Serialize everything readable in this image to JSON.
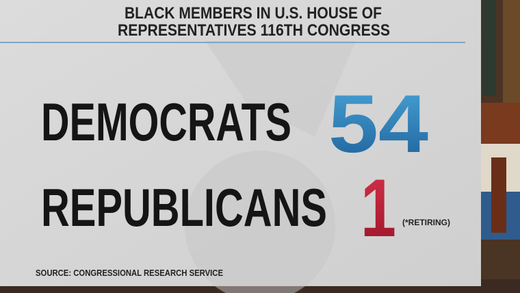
{
  "title": [
    "BLACK MEMBERS IN U.S. HOUSE OF",
    "REPRESENTATIVES 116TH CONGRESS"
  ],
  "rows": [
    {
      "label": "DEMOCRATS",
      "value": 54
    },
    {
      "label": "REPUBLICANS",
      "value": 1,
      "note": "(*RETIRING)"
    }
  ],
  "source": "SOURCE: CONGRESSIONAL RESEARCH SERVICE"
}
